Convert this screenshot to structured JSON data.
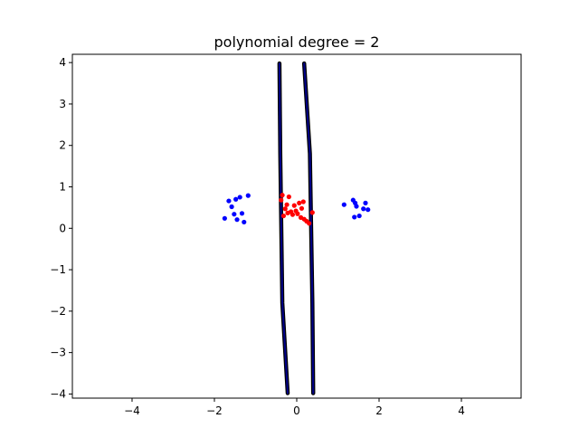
{
  "chart_data": {
    "type": "scatter",
    "title": "polynomial degree = 2",
    "xlabel": "",
    "ylabel": "",
    "xlim": [
      -5.45,
      5.45
    ],
    "ylim": [
      -4.1,
      4.2
    ],
    "xticks": [
      -4,
      -2,
      0,
      2,
      4
    ],
    "yticks": [
      -4,
      -3,
      -2,
      -1,
      0,
      1,
      2,
      3,
      4
    ],
    "grid": false,
    "legend": "none",
    "series": [
      {
        "kind": "points",
        "color": "#0000ff",
        "points": [
          [
            -1.75,
            0.24
          ],
          [
            -1.65,
            0.66
          ],
          [
            -1.58,
            0.52
          ],
          [
            -1.52,
            0.34
          ],
          [
            -1.48,
            0.7
          ],
          [
            -1.45,
            0.21
          ],
          [
            -1.38,
            0.75
          ],
          [
            -1.33,
            0.36
          ],
          [
            -1.28,
            0.15
          ],
          [
            -1.18,
            0.79
          ],
          [
            1.15,
            0.57
          ],
          [
            1.37,
            0.68
          ],
          [
            1.4,
            0.27
          ],
          [
            1.42,
            0.61
          ],
          [
            1.45,
            0.53
          ],
          [
            1.52,
            0.3
          ],
          [
            1.62,
            0.47
          ],
          [
            1.67,
            0.61
          ],
          [
            1.73,
            0.45
          ]
        ]
      },
      {
        "kind": "points",
        "color": "#ff0000",
        "points": [
          [
            -0.38,
            0.68
          ],
          [
            -0.35,
            0.8
          ],
          [
            -0.32,
            0.3
          ],
          [
            -0.28,
            0.47
          ],
          [
            -0.24,
            0.57
          ],
          [
            -0.22,
            0.37
          ],
          [
            -0.19,
            0.76
          ],
          [
            -0.14,
            0.4
          ],
          [
            -0.1,
            0.33
          ],
          [
            -0.06,
            0.55
          ],
          [
            -0.02,
            0.42
          ],
          [
            0.02,
            0.35
          ],
          [
            0.06,
            0.61
          ],
          [
            0.1,
            0.26
          ],
          [
            0.12,
            0.48
          ],
          [
            0.16,
            0.64
          ],
          [
            0.18,
            0.22
          ],
          [
            0.24,
            0.17
          ],
          [
            0.3,
            0.12
          ],
          [
            0.38,
            0.38
          ]
        ]
      },
      {
        "kind": "boundary",
        "color": "#00008b",
        "edge_color": "#000000",
        "points": [
          [
            -0.42,
            3.98
          ],
          [
            -0.4,
            1.8
          ],
          [
            -0.35,
            -1.8
          ],
          [
            -0.22,
            -3.98
          ]
        ]
      },
      {
        "kind": "boundary",
        "color": "#00008b",
        "edge_color": "#000000",
        "points": [
          [
            0.18,
            3.98
          ],
          [
            0.32,
            1.8
          ],
          [
            0.38,
            -1.8
          ],
          [
            0.4,
            -3.98
          ]
        ]
      }
    ]
  }
}
